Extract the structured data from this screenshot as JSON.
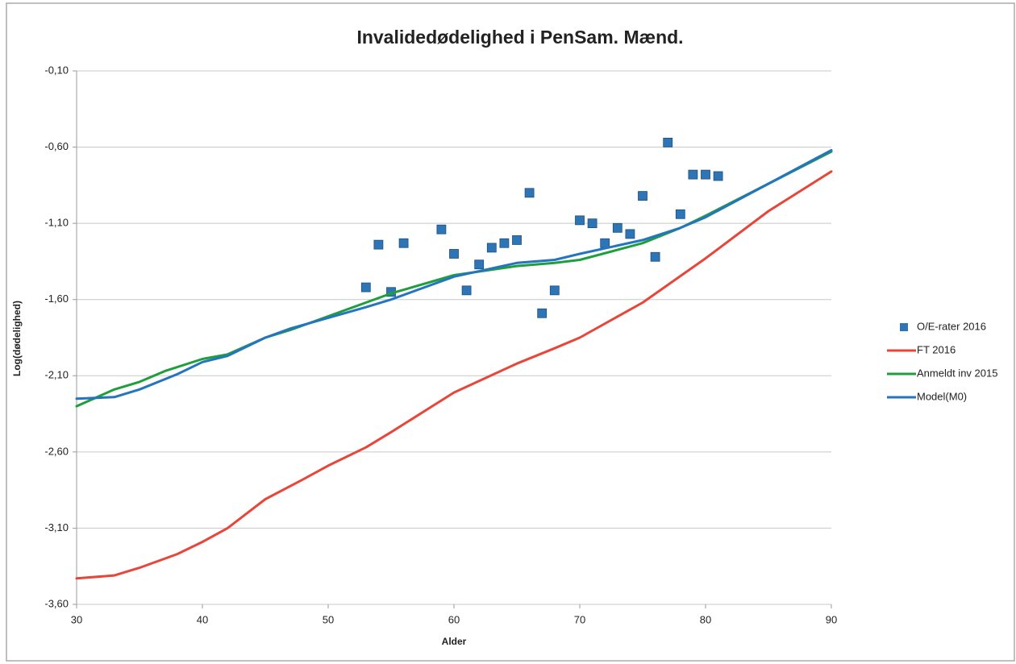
{
  "chart_data": {
    "type": "line",
    "title": "Invalidedødelighed i PenSam. Mænd.",
    "x_label": "Alder",
    "y_label": "Log(dødelighed)",
    "xlim": [
      30,
      90
    ],
    "xticks": [
      30,
      40,
      50,
      60,
      70,
      80,
      90
    ],
    "ylim": [
      -3.6,
      -0.1
    ],
    "yticks": [
      {
        "value": -0.1,
        "label": "-0,10"
      },
      {
        "value": -0.6,
        "label": "-0,60"
      },
      {
        "value": -1.1,
        "label": "-1,10"
      },
      {
        "value": -1.6,
        "label": "-1,60"
      },
      {
        "value": -2.1,
        "label": "-2,10"
      },
      {
        "value": -2.6,
        "label": "-2,60"
      },
      {
        "value": -3.1,
        "label": "-3,10"
      },
      {
        "value": -3.6,
        "label": "-3,60"
      }
    ],
    "grid": true,
    "legend": "right",
    "series": [
      {
        "name": "O/E-rater 2016",
        "color": "#2e75b6",
        "mode": "markers",
        "x": [
          53,
          54,
          55,
          56,
          59,
          60,
          61,
          62,
          63,
          64,
          65,
          66,
          67,
          68,
          70,
          71,
          72,
          73,
          74,
          75,
          76,
          77,
          78,
          79,
          80,
          81
        ],
        "values": [
          -1.52,
          -1.24,
          -1.55,
          -1.23,
          -1.14,
          -1.3,
          -1.54,
          -1.37,
          -1.26,
          -1.23,
          -1.21,
          -0.9,
          -1.69,
          -1.54,
          -1.08,
          -1.1,
          -1.23,
          -1.13,
          -1.17,
          -0.92,
          -1.32,
          -0.57,
          -1.04,
          -0.78,
          -0.78,
          -0.79
        ]
      },
      {
        "name": "FT 2016",
        "color": "#e8463a",
        "mode": "lines",
        "x": [
          30,
          33,
          35,
          38,
          40,
          42,
          45,
          48,
          50,
          53,
          55,
          60,
          65,
          68,
          70,
          75,
          80,
          85,
          90
        ],
        "values": [
          -3.43,
          -3.41,
          -3.36,
          -3.27,
          -3.19,
          -3.1,
          -2.91,
          -2.78,
          -2.69,
          -2.57,
          -2.47,
          -2.21,
          -2.02,
          -1.92,
          -1.85,
          -1.62,
          -1.33,
          -1.02,
          -0.76
        ]
      },
      {
        "name": "Anmeldt inv 2015",
        "color": "#1f9e3e",
        "mode": "lines",
        "x": [
          30,
          33,
          35,
          37,
          40,
          42,
          45,
          47,
          50,
          53,
          55,
          60,
          65,
          68,
          70,
          75,
          78,
          80,
          85,
          90
        ],
        "values": [
          -2.3,
          -2.19,
          -2.14,
          -2.07,
          -1.99,
          -1.96,
          -1.85,
          -1.8,
          -1.71,
          -1.62,
          -1.56,
          -1.44,
          -1.38,
          -1.36,
          -1.34,
          -1.23,
          -1.13,
          -1.05,
          -0.84,
          -0.63
        ]
      },
      {
        "name": "Model(M0)",
        "color": "#2474c0",
        "mode": "lines",
        "x": [
          30,
          33,
          35,
          38,
          40,
          42,
          45,
          47,
          50,
          53,
          55,
          60,
          65,
          68,
          70,
          75,
          78,
          80,
          85,
          90
        ],
        "values": [
          -2.25,
          -2.24,
          -2.19,
          -2.09,
          -2.01,
          -1.97,
          -1.85,
          -1.79,
          -1.72,
          -1.65,
          -1.6,
          -1.45,
          -1.36,
          -1.34,
          -1.3,
          -1.21,
          -1.13,
          -1.06,
          -0.84,
          -0.62
        ]
      }
    ]
  }
}
